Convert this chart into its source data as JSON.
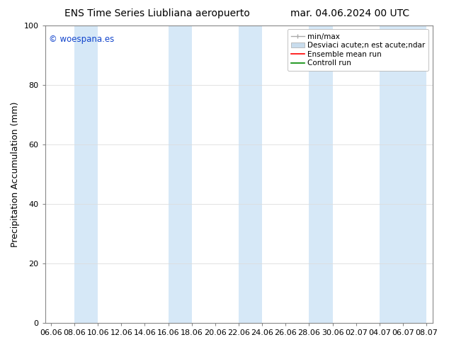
{
  "title_left": "ENS Time Series Liubliana aeropuerto",
  "title_right": "mar. 04.06.2024 00 UTC",
  "ylabel": "Precipitation Accumulation (mm)",
  "watermark": "© woespana.es",
  "ylim": [
    0,
    100
  ],
  "background_color": "#ffffff",
  "plot_bg_color": "#ffffff",
  "x_tick_labels": [
    "06.06",
    "08.06",
    "10.06",
    "12.06",
    "14.06",
    "16.06",
    "18.06",
    "20.06",
    "22.06",
    "24.06",
    "26.06",
    "28.06",
    "30.06",
    "02.07",
    "04.07",
    "06.07",
    "08.07"
  ],
  "x_tick_values": [
    0,
    2,
    4,
    6,
    8,
    10,
    12,
    14,
    16,
    18,
    20,
    22,
    24,
    26,
    28,
    30,
    32
  ],
  "band_ranges": [
    [
      2,
      4
    ],
    [
      10,
      12
    ],
    [
      16,
      18
    ],
    [
      22,
      24
    ],
    [
      28,
      30
    ],
    [
      30,
      32
    ]
  ],
  "shaded_band_color": "#d6e8f7",
  "legend_label_minmax": "min/max",
  "legend_label_std": "Desviaci acute;n est acute;ndar",
  "legend_label_ensemble": "Ensemble mean run",
  "legend_label_control": "Controll run",
  "legend_color_minmax": "#aaaaaa",
  "legend_color_std": "#c8dced",
  "legend_color_ensemble": "#ff0000",
  "legend_color_control": "#008800",
  "title_fontsize": 10,
  "ylabel_fontsize": 9,
  "tick_fontsize": 8,
  "legend_fontsize": 7.5,
  "watermark_color": "#1144cc"
}
